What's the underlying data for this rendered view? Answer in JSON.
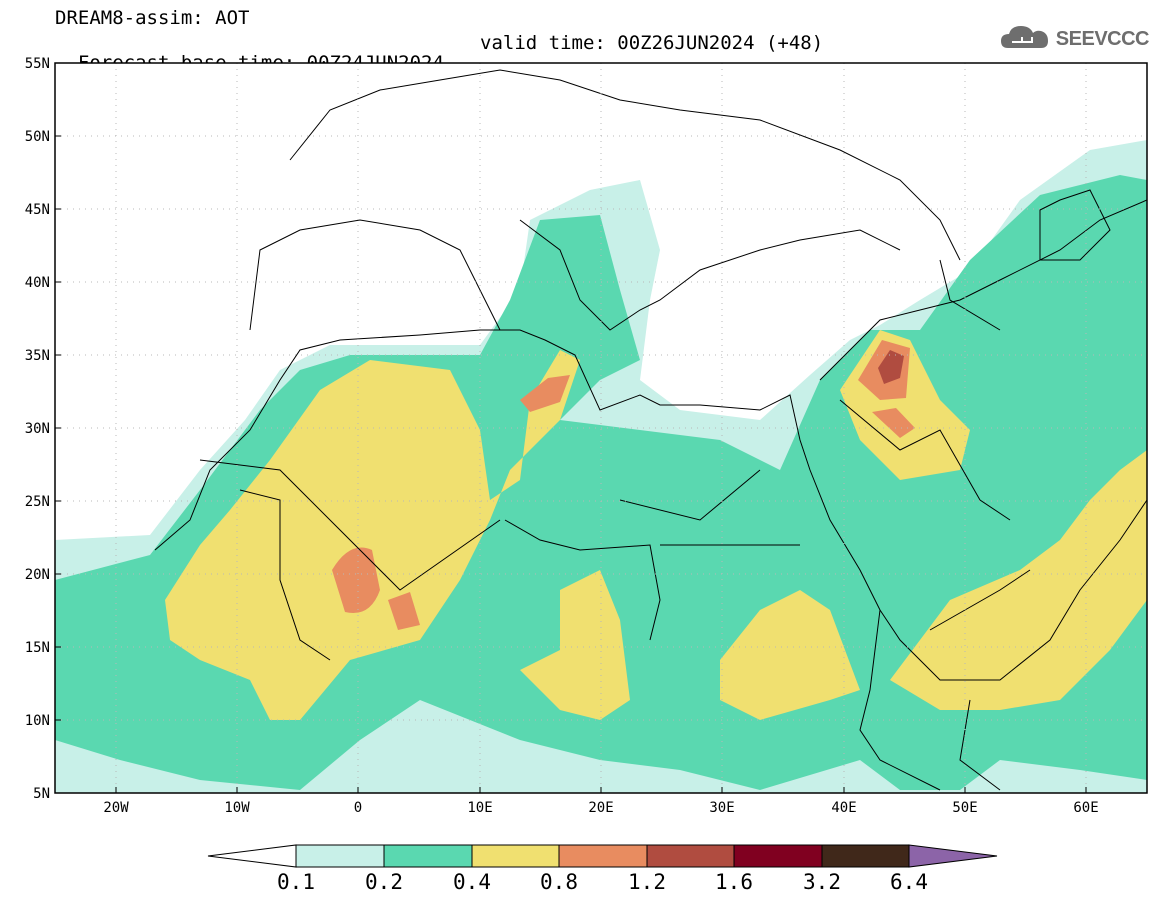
{
  "header": {
    "title": "DREAM8-assim: AOT",
    "base_time": "Forecast base time: 00Z24JUN2024",
    "valid_time": "valid time: 00Z26JUN2024 (+48)"
  },
  "logo": {
    "text": "SEEVCCC",
    "icon": "cloud-icon"
  },
  "map": {
    "lon_range": [
      -25,
      65
    ],
    "lat_range": [
      5,
      55
    ],
    "grid": true,
    "lat_ticks": [
      "55N",
      "50N",
      "45N",
      "40N",
      "35N",
      "30N",
      "25N",
      "20N",
      "15N",
      "10N",
      "5N"
    ],
    "lon_ticks": [
      "20W",
      "10W",
      "0",
      "10E",
      "20E",
      "30E",
      "40E",
      "50E",
      "60E"
    ]
  },
  "colorbar": {
    "labels": [
      "0.1",
      "0.2",
      "0.4",
      "0.8",
      "1.2",
      "1.6",
      "3.2",
      "6.4"
    ],
    "colors": [
      "#c8f0e8",
      "#5ad8b0",
      "#f0e070",
      "#e88c60",
      "#b04c40",
      "#800020",
      "#40281a",
      "#8c64a8"
    ]
  },
  "chart_data": {
    "type": "heatmap",
    "variable": "AOT",
    "levels": [
      0.1,
      0.2,
      0.4,
      0.8,
      1.2,
      1.6,
      3.2,
      6.4
    ],
    "colors": [
      "#c8f0e8",
      "#5ad8b0",
      "#f0e070",
      "#e88c60",
      "#b04c40",
      "#800020",
      "#40281a",
      "#8c64a8"
    ],
    "xlim": [
      -25,
      65
    ],
    "ylim": [
      5,
      55
    ]
  }
}
